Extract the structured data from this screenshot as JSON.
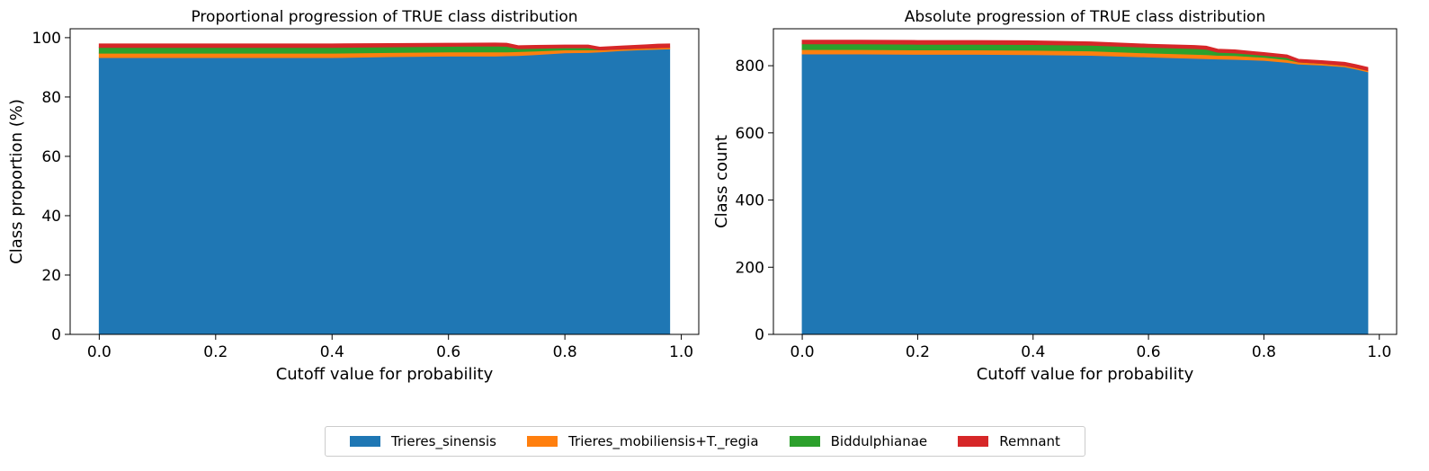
{
  "chart_data": [
    {
      "type": "area",
      "title": "Proportional progression of TRUE class distribution",
      "xlabel": "Cutoff value for probability",
      "ylabel": "Class proportion (%)",
      "xlim": [
        -0.05,
        1.03
      ],
      "ylim": [
        0,
        103
      ],
      "xticks": [
        "0.0",
        "0.2",
        "0.4",
        "0.6",
        "0.8",
        "1.0"
      ],
      "yticks": [
        "0",
        "20",
        "40",
        "60",
        "80",
        "100"
      ],
      "x": [
        0.0,
        0.1,
        0.2,
        0.3,
        0.4,
        0.5,
        0.6,
        0.68,
        0.7,
        0.72,
        0.75,
        0.8,
        0.84,
        0.86,
        0.9,
        0.94,
        0.96,
        0.98
      ],
      "series": [
        {
          "name": "Trieres_sinensis",
          "values": [
            93.3,
            93.3,
            93.3,
            93.3,
            93.3,
            93.6,
            93.8,
            93.8,
            93.9,
            94.0,
            94.3,
            94.9,
            95.0,
            95.2,
            95.7,
            96.0,
            96.1,
            96.2
          ]
        },
        {
          "name": "Trieres_mobiliensis+T._regia",
          "values": [
            1.5,
            1.5,
            1.5,
            1.5,
            1.5,
            1.4,
            1.4,
            1.4,
            1.3,
            1.3,
            1.2,
            1.0,
            0.9,
            0.7,
            0.5,
            0.5,
            0.5,
            0.5
          ]
        },
        {
          "name": "Biddulphianae",
          "values": [
            1.9,
            1.9,
            1.9,
            1.9,
            1.9,
            1.9,
            1.9,
            2.0,
            1.9,
            1.0,
            0.9,
            0.7,
            0.7,
            0.0,
            0.0,
            0.0,
            0.0,
            0.0
          ]
        },
        {
          "name": "Remnant",
          "values": [
            1.2,
            1.2,
            1.2,
            1.2,
            1.2,
            1.1,
            1.0,
            1.0,
            1.0,
            1.0,
            1.0,
            0.9,
            0.9,
            0.9,
            1.0,
            1.1,
            1.2,
            1.2
          ]
        }
      ]
    },
    {
      "type": "area",
      "title": "Absolute progression of TRUE class distribution",
      "xlabel": "Cutoff value for probability",
      "ylabel": "Class count",
      "xlim": [
        -0.05,
        1.03
      ],
      "ylim": [
        0,
        910
      ],
      "xticks": [
        "0.0",
        "0.2",
        "0.4",
        "0.6",
        "0.8",
        "1.0"
      ],
      "yticks": [
        "0",
        "200",
        "400",
        "600",
        "800"
      ],
      "x": [
        0.0,
        0.1,
        0.2,
        0.3,
        0.4,
        0.5,
        0.6,
        0.68,
        0.7,
        0.72,
        0.75,
        0.8,
        0.84,
        0.86,
        0.9,
        0.94,
        0.96,
        0.98
      ],
      "series": [
        {
          "name": "Trieres_sinensis",
          "values": [
            835,
            835,
            834,
            834,
            833,
            831,
            826,
            822,
            821,
            820,
            819,
            816,
            810,
            805,
            802,
            797,
            790,
            782
          ]
        },
        {
          "name": "Trieres_mobiliensis+T._regia",
          "values": [
            13,
            13,
            13,
            13,
            13,
            13,
            12,
            12,
            12,
            11,
            11,
            9,
            8,
            6,
            5,
            4,
            4,
            4
          ]
        },
        {
          "name": "Biddulphianae",
          "values": [
            17,
            17,
            17,
            17,
            17,
            17,
            17,
            17,
            16,
            9,
            8,
            6,
            6,
            0,
            0,
            0,
            0,
            0
          ]
        },
        {
          "name": "Remnant",
          "values": [
            11,
            11,
            11,
            11,
            11,
            10,
            9,
            9,
            9,
            9,
            9,
            8,
            8,
            8,
            8,
            9,
            9,
            9
          ]
        }
      ]
    }
  ],
  "legend": [
    {
      "label": "Trieres_sinensis",
      "color": "#1f77b4"
    },
    {
      "label": "Trieres_mobiliensis+T._regia",
      "color": "#ff7f0e"
    },
    {
      "label": "Biddulphianae",
      "color": "#2ca02c"
    },
    {
      "label": "Remnant",
      "color": "#d62728"
    }
  ]
}
